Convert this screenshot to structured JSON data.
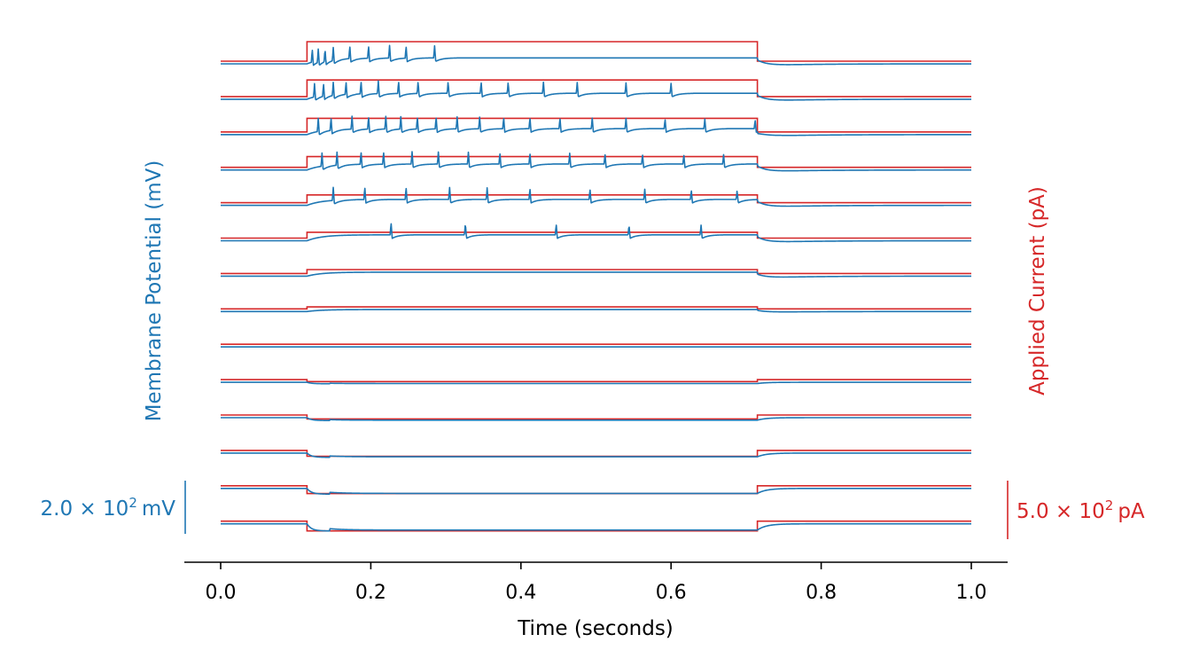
{
  "chart_data": {
    "type": "line",
    "xlabel": "Time (seconds)",
    "ylabel_left": "Membrane Potential (mV)",
    "ylabel_right": "Applied Current (pA)",
    "xlim": [
      0.0,
      1.0
    ],
    "x_ticks": [
      0.0,
      0.2,
      0.4,
      0.6,
      0.8,
      1.0
    ],
    "x_tick_labels": [
      "0.0",
      "0.2",
      "0.4",
      "0.6",
      "0.8",
      "1.0"
    ],
    "grid": false,
    "stimulus_window_s": [
      0.115,
      0.715
    ],
    "scale_bars": {
      "voltage": {
        "value": 200,
        "unit": "mV",
        "text_mantissa": "2.0",
        "text_base": "10",
        "text_exp": "2",
        "text_unit": "mV"
      },
      "current": {
        "value": 500,
        "unit": "pA",
        "text_mantissa": "5.0",
        "text_base": "10",
        "text_exp": "2",
        "text_unit": "pA"
      }
    },
    "colors": {
      "voltage": "#1f77b4",
      "current": "#d62728",
      "axis": "#000000"
    },
    "sweeps": [
      {
        "current_step": 1.0,
        "spike_times": [
          0.122,
          0.13,
          0.139,
          0.15,
          0.172,
          0.197,
          0.225,
          0.247,
          0.285
        ]
      },
      {
        "current_step": 0.85,
        "spike_times": [
          0.125,
          0.137,
          0.15,
          0.167,
          0.187,
          0.21,
          0.237,
          0.263,
          0.303,
          0.347,
          0.383,
          0.43,
          0.475,
          0.54,
          0.6
        ]
      },
      {
        "current_step": 0.7,
        "spike_times": [
          0.13,
          0.147,
          0.175,
          0.197,
          0.22,
          0.24,
          0.262,
          0.287,
          0.315,
          0.345,
          0.377,
          0.412,
          0.452,
          0.495,
          0.54,
          0.592,
          0.645,
          0.712
        ]
      },
      {
        "current_step": 0.55,
        "spike_times": [
          0.135,
          0.155,
          0.187,
          0.217,
          0.255,
          0.29,
          0.33,
          0.372,
          0.412,
          0.465,
          0.512,
          0.562,
          0.617,
          0.67
        ]
      },
      {
        "current_step": 0.4,
        "spike_times": [
          0.15,
          0.192,
          0.247,
          0.305,
          0.355,
          0.412,
          0.492,
          0.565,
          0.627,
          0.688
        ]
      },
      {
        "current_step": 0.3,
        "spike_times": [
          0.227,
          0.326,
          0.447,
          0.544,
          0.64
        ]
      },
      {
        "current_step": 0.2,
        "spike_times": []
      },
      {
        "current_step": 0.1,
        "spike_times": []
      },
      {
        "current_step": 0.0,
        "spike_times": []
      },
      {
        "current_step": -0.1,
        "spike_times": []
      },
      {
        "current_step": -0.2,
        "spike_times": []
      },
      {
        "current_step": -0.3,
        "spike_times": []
      },
      {
        "current_step": -0.4,
        "spike_times": []
      },
      {
        "current_step": -0.5,
        "spike_times": []
      }
    ]
  }
}
